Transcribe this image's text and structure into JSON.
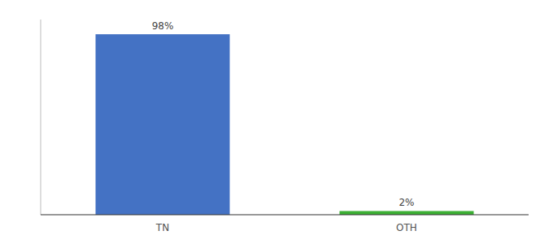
{
  "chart_data": {
    "type": "bar",
    "categories": [
      "TN",
      "OTH"
    ],
    "values": [
      98,
      2
    ],
    "value_labels": [
      "98%",
      "2%"
    ],
    "colors": [
      "#4472C4",
      "#3CB034"
    ],
    "ylim": [
      0,
      106
    ],
    "grid": false,
    "data_labels": true,
    "tick_labels": "x"
  }
}
